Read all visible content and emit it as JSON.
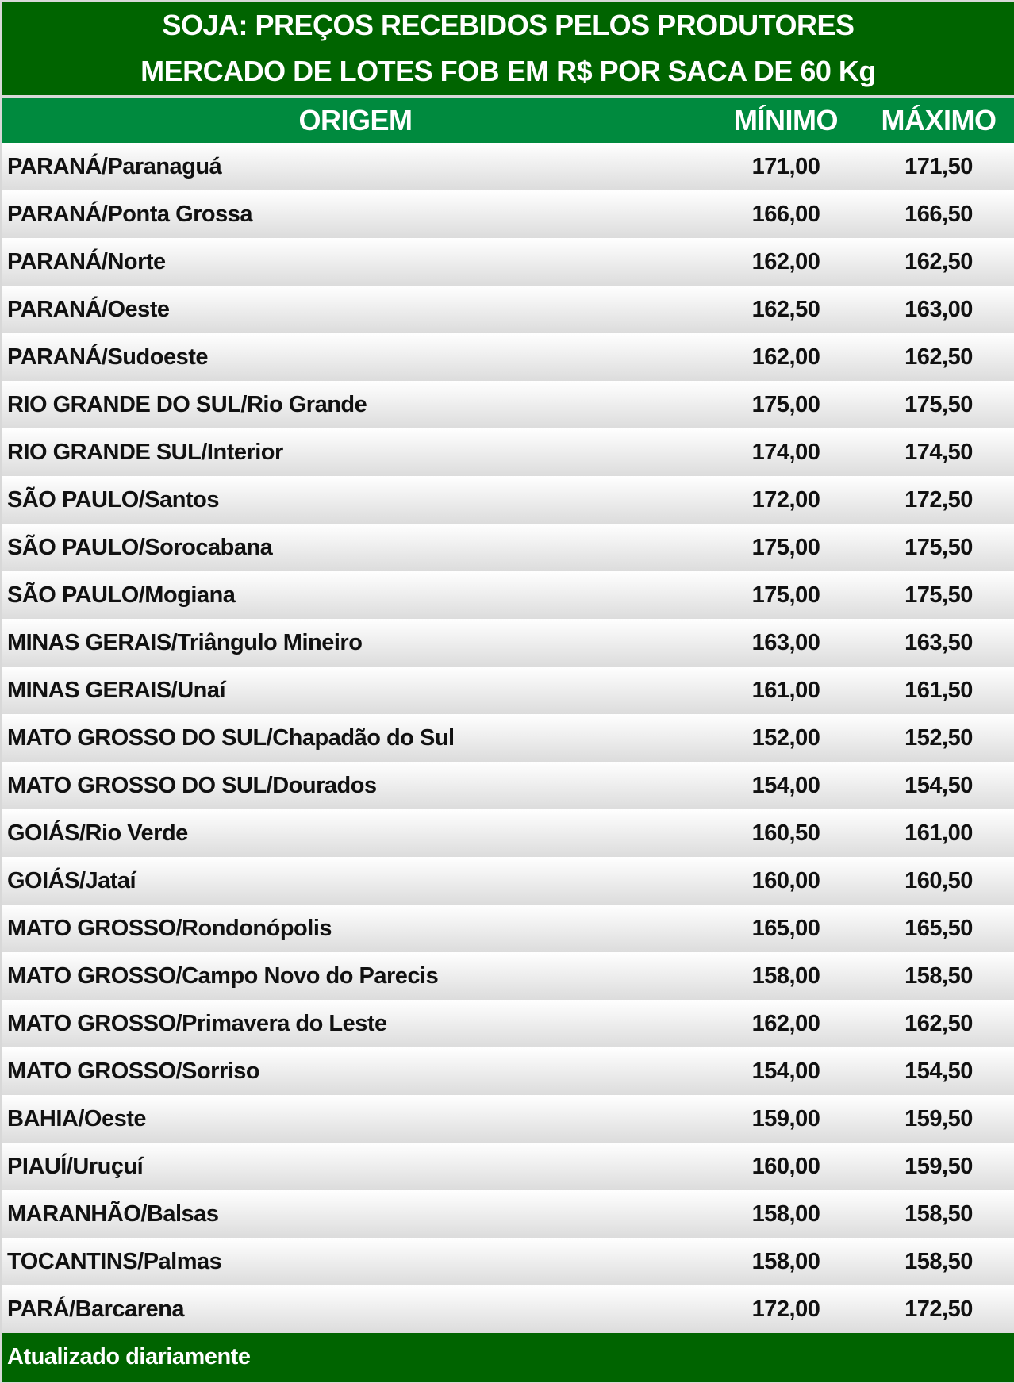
{
  "title": {
    "line1": "SOJA: PREÇOS RECEBIDOS PELOS PRODUTORES",
    "line2": "MERCADO DE LOTES FOB EM R$ POR SACA DE 60 Kg"
  },
  "headers": {
    "origem": "ORIGEM",
    "minimo": "MÍNIMO",
    "maximo": "MÁXIMO"
  },
  "rows": [
    {
      "origem": "PARANÁ/Paranaguá",
      "min": "171,00",
      "max": "171,50"
    },
    {
      "origem": "PARANÁ/Ponta Grossa",
      "min": "166,00",
      "max": "166,50"
    },
    {
      "origem": "PARANÁ/Norte",
      "min": "162,00",
      "max": "162,50"
    },
    {
      "origem": "PARANÁ/Oeste",
      "min": "162,50",
      "max": "163,00"
    },
    {
      "origem": "PARANÁ/Sudoeste",
      "min": "162,00",
      "max": "162,50"
    },
    {
      "origem": "RIO GRANDE DO SUL/Rio Grande",
      "min": "175,00",
      "max": "175,50"
    },
    {
      "origem": "RIO GRANDE SUL/Interior",
      "min": "174,00",
      "max": "174,50"
    },
    {
      "origem": "SÃO PAULO/Santos",
      "min": "172,00",
      "max": "172,50"
    },
    {
      "origem": "SÃO PAULO/Sorocabana",
      "min": "175,00",
      "max": "175,50"
    },
    {
      "origem": "SÃO PAULO/Mogiana",
      "min": "175,00",
      "max": "175,50"
    },
    {
      "origem": "MINAS GERAIS/Triângulo Mineiro",
      "min": "163,00",
      "max": "163,50"
    },
    {
      "origem": "MINAS GERAIS/Unaí",
      "min": "161,00",
      "max": "161,50"
    },
    {
      "origem": "MATO GROSSO DO SUL/Chapadão do Sul",
      "min": "152,00",
      "max": "152,50"
    },
    {
      "origem": "MATO GROSSO DO SUL/Dourados",
      "min": "154,00",
      "max": "154,50"
    },
    {
      "origem": "GOIÁS/Rio Verde",
      "min": "160,50",
      "max": "161,00"
    },
    {
      "origem": "GOIÁS/Jataí",
      "min": "160,00",
      "max": "160,50"
    },
    {
      "origem": "MATO GROSSO/Rondonópolis",
      "min": "165,00",
      "max": "165,50"
    },
    {
      "origem": "MATO GROSSO/Campo Novo do Parecis",
      "min": "158,00",
      "max": "158,50"
    },
    {
      "origem": "MATO GROSSO/Primavera do Leste",
      "min": "162,00",
      "max": "162,50"
    },
    {
      "origem": "MATO GROSSO/Sorriso",
      "min": "154,00",
      "max": "154,50"
    },
    {
      "origem": "BAHIA/Oeste",
      "min": "159,00",
      "max": "159,50"
    },
    {
      "origem": "PIAUÍ/Uruçuí",
      "min": "160,00",
      "max": "159,50"
    },
    {
      "origem": "MARANHÃO/Balsas",
      "min": "158,00",
      "max": "158,50"
    },
    {
      "origem": "TOCANTINS/Palmas",
      "min": "158,00",
      "max": "158,50"
    },
    {
      "origem": "PARÁ/Barcarena",
      "min": "172,00",
      "max": "172,50"
    }
  ],
  "footer": "Atualizado diariamente",
  "colors": {
    "title_bg": "#006400",
    "header_bg": "#008a3e",
    "footer_bg": "#006400"
  }
}
